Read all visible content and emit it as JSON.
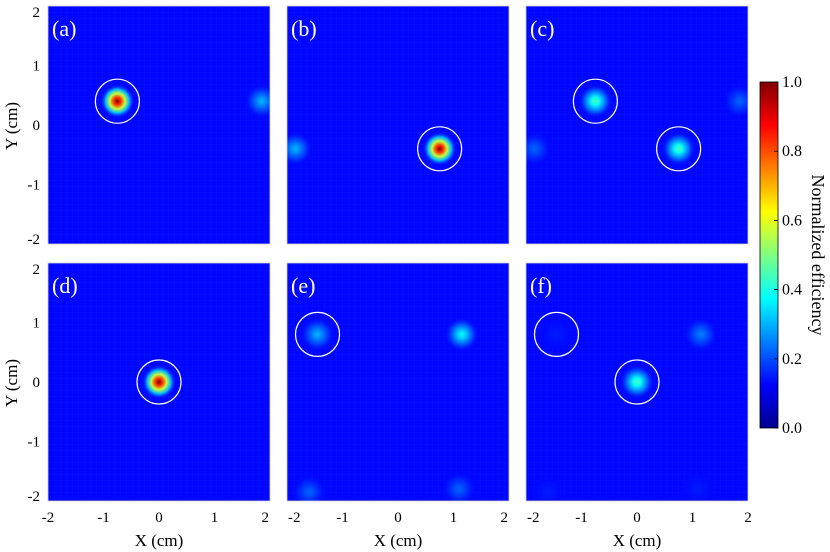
{
  "chart_data": {
    "type": "heatmap",
    "xlabel": "X (cm)",
    "ylabel": "Y (cm)",
    "xlim": [
      -2,
      2
    ],
    "ylim": [
      -2,
      2
    ],
    "x_ticks": [
      "-2",
      "-1",
      "0",
      "1",
      "2"
    ],
    "y_ticks": [
      "2",
      "1",
      "0",
      "-1",
      "-2"
    ],
    "colorbar": {
      "label": "Normalized efficiency",
      "range": [
        0,
        1
      ],
      "ticks": [
        "1.0",
        "0.8",
        "0.6",
        "0.4",
        "0.2",
        "0.0"
      ],
      "colormap": "jet"
    },
    "panels": [
      {
        "label": "(a)",
        "spots": [
          {
            "x": -0.75,
            "y": 0.4,
            "value": 1.0
          },
          {
            "x": 1.85,
            "y": 0.4,
            "value": 0.3
          }
        ],
        "circles": [
          {
            "x": -0.75,
            "y": 0.4
          }
        ]
      },
      {
        "label": "(b)",
        "spots": [
          {
            "x": 0.75,
            "y": -0.4,
            "value": 1.0
          },
          {
            "x": -1.85,
            "y": -0.4,
            "value": 0.3
          }
        ],
        "circles": [
          {
            "x": 0.75,
            "y": -0.4
          }
        ]
      },
      {
        "label": "(c)",
        "spots": [
          {
            "x": -0.75,
            "y": 0.4,
            "value": 0.45
          },
          {
            "x": 0.75,
            "y": -0.4,
            "value": 0.45
          },
          {
            "x": 1.85,
            "y": 0.4,
            "value": 0.22
          },
          {
            "x": -1.85,
            "y": -0.4,
            "value": 0.22
          }
        ],
        "circles": [
          {
            "x": -0.75,
            "y": 0.4
          },
          {
            "x": 0.75,
            "y": -0.4
          }
        ]
      },
      {
        "label": "(d)",
        "spots": [
          {
            "x": 0.0,
            "y": 0.0,
            "value": 1.0
          }
        ],
        "circles": [
          {
            "x": 0.0,
            "y": 0.0
          }
        ]
      },
      {
        "label": "(e)",
        "spots": [
          {
            "x": -1.45,
            "y": 0.8,
            "value": 0.3
          },
          {
            "x": 1.15,
            "y": 0.8,
            "value": 0.38
          },
          {
            "x": -1.6,
            "y": -1.85,
            "value": 0.22
          },
          {
            "x": 1.1,
            "y": -1.8,
            "value": 0.22
          }
        ],
        "circles": [
          {
            "x": -1.45,
            "y": 0.8
          }
        ]
      },
      {
        "label": "(f)",
        "spots": [
          {
            "x": 0.0,
            "y": 0.0,
            "value": 0.45
          },
          {
            "x": -1.45,
            "y": 0.8,
            "value": 0.15
          },
          {
            "x": 1.15,
            "y": 0.8,
            "value": 0.25
          },
          {
            "x": -1.6,
            "y": -1.85,
            "value": 0.15
          },
          {
            "x": 1.1,
            "y": -1.8,
            "value": 0.15
          }
        ],
        "circles": [
          {
            "x": -1.45,
            "y": 0.8
          },
          {
            "x": 0.0,
            "y": 0.0
          }
        ]
      }
    ]
  }
}
